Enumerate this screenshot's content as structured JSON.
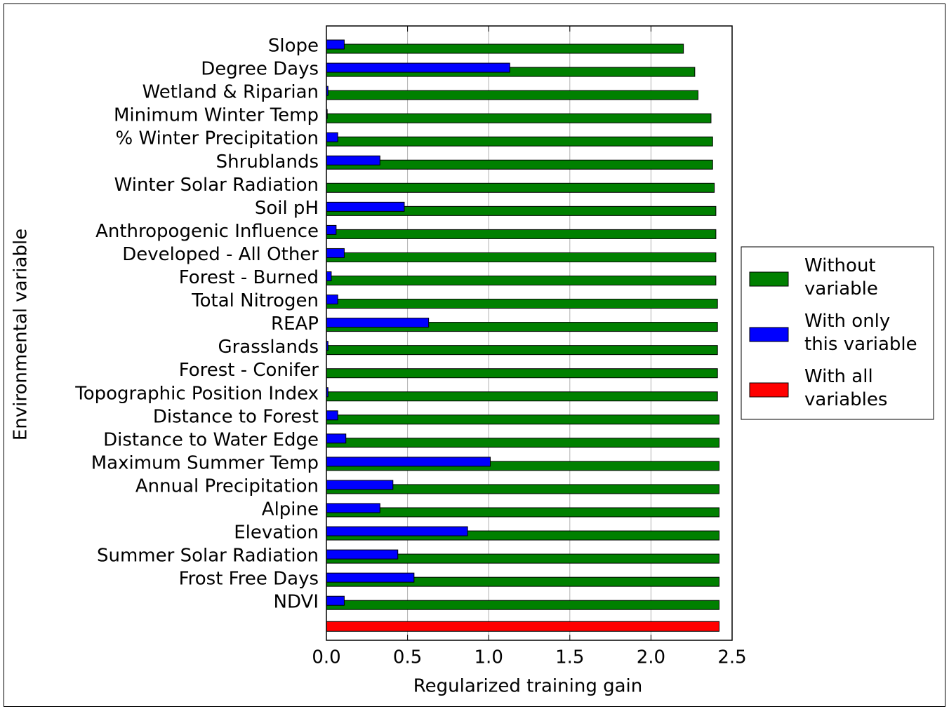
{
  "chart_data": {
    "type": "bar",
    "orientation": "horizontal",
    "xlabel": "Regularized training gain",
    "ylabel": "Environmental variable",
    "categories": [
      "Slope",
      "Degree Days",
      "Wetland & Riparian",
      "Minimum Winter Temp",
      "% Winter Precipitation",
      "Shrublands",
      "Winter Solar Radiation",
      "Soil pH",
      "Anthropogenic Influence",
      "Developed - All Other",
      "Forest - Burned",
      "Total Nitrogen",
      "REAP",
      "Grasslands",
      "Forest - Conifer",
      "Topographic Position Index",
      "Distance to Forest",
      "Distance to Water Edge",
      "Maximum Summer Temp",
      "Annual Precipitation",
      "Alpine",
      "Elevation",
      "Summer Solar Radiation",
      "Frost Free Days",
      "NDVI"
    ],
    "series": [
      {
        "name": "Without variable",
        "color": "#008000",
        "values": [
          2.2,
          2.27,
          2.29,
          2.37,
          2.38,
          2.38,
          2.39,
          2.4,
          2.4,
          2.4,
          2.4,
          2.41,
          2.41,
          2.41,
          2.41,
          2.41,
          2.42,
          2.42,
          2.42,
          2.42,
          2.42,
          2.42,
          2.42,
          2.42,
          2.42
        ]
      },
      {
        "name": "With only this variable",
        "color": "#0000ff",
        "values": [
          0.11,
          1.13,
          0.01,
          0.005,
          0.07,
          0.33,
          0.0,
          0.48,
          0.06,
          0.11,
          0.03,
          0.07,
          0.63,
          0.01,
          0.0,
          0.01,
          0.07,
          0.12,
          1.01,
          0.41,
          0.33,
          0.87,
          0.44,
          0.54,
          0.11
        ]
      }
    ],
    "all_variables": {
      "name": "With all variables",
      "color": "#ff0000",
      "value": 2.42
    },
    "xlim": [
      0,
      2.5
    ],
    "xticks": [
      {
        "value": 0,
        "label": "0.0"
      },
      0.5,
      {
        "value": 1,
        "label": "1.0"
      },
      1.5,
      {
        "value": 2,
        "label": "2.0"
      },
      2.5
    ],
    "grid": true,
    "legend": "right"
  }
}
